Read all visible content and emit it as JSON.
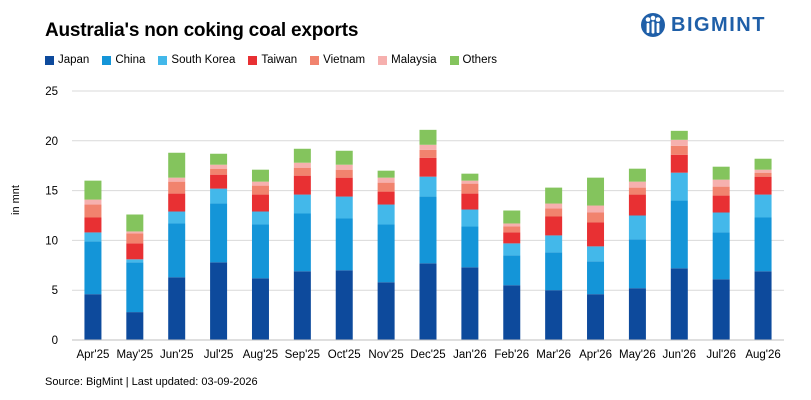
{
  "title": "Australia's non coking coal exports",
  "logo": {
    "text": "BIGMINT",
    "icon": "bigmint-logo-icon"
  },
  "source": "Source: BigMint | Last updated: 03-09-2026",
  "chart_data": {
    "type": "bar",
    "stacked": true,
    "title": "Australia's non coking coal exports",
    "ylabel": "in mnt",
    "xlabel": "",
    "ylim": [
      0,
      25
    ],
    "yticks": [
      0,
      5,
      10,
      15,
      20,
      25
    ],
    "grid": true,
    "legend_position": "top-left",
    "categories": [
      "Apr'25",
      "May'25",
      "Jun'25",
      "Jul'25",
      "Aug'25",
      "Sep'25",
      "Oct'25",
      "Nov'25",
      "Dec'25",
      "Jan'26",
      "Feb'26",
      "Mar'26",
      "Apr'26",
      "May'26",
      "Jun'26",
      "Jul'26",
      "Aug'26"
    ],
    "series": [
      {
        "name": "Japan",
        "color": "#0d4a9c",
        "values": [
          4.6,
          2.8,
          6.3,
          7.8,
          6.2,
          6.9,
          7.0,
          5.8,
          7.7,
          7.3,
          5.5,
          5.0,
          4.6,
          5.2,
          7.2,
          6.1,
          6.9
        ]
      },
      {
        "name": "China",
        "color": "#1495d8",
        "values": [
          5.3,
          5.0,
          5.4,
          5.9,
          5.4,
          5.8,
          5.2,
          5.8,
          6.7,
          4.1,
          3.0,
          3.8,
          3.3,
          4.9,
          6.8,
          4.7,
          5.4
        ]
      },
      {
        "name": "South Korea",
        "color": "#43b8ea",
        "values": [
          0.9,
          0.3,
          1.2,
          1.5,
          1.3,
          1.9,
          2.2,
          2.0,
          2.0,
          1.7,
          1.2,
          1.7,
          1.5,
          2.4,
          2.8,
          2.0,
          2.3
        ]
      },
      {
        "name": "Taiwan",
        "color": "#e83033",
        "values": [
          1.5,
          1.6,
          1.8,
          1.4,
          1.7,
          1.9,
          1.9,
          1.3,
          1.9,
          1.6,
          1.1,
          1.9,
          2.4,
          2.1,
          1.8,
          1.7,
          1.8
        ]
      },
      {
        "name": "Vietnam",
        "color": "#f1836e",
        "values": [
          1.3,
          1.0,
          1.2,
          0.6,
          0.9,
          0.8,
          0.8,
          0.9,
          0.8,
          1.0,
          0.6,
          0.8,
          1.0,
          0.7,
          0.9,
          0.9,
          0.4
        ]
      },
      {
        "name": "Malaysia",
        "color": "#f6b0ae",
        "values": [
          0.5,
          0.2,
          0.4,
          0.4,
          0.4,
          0.5,
          0.5,
          0.5,
          0.5,
          0.3,
          0.3,
          0.5,
          0.7,
          0.6,
          0.6,
          0.7,
          0.3
        ]
      },
      {
        "name": "Others",
        "color": "#84c45d",
        "values": [
          1.9,
          1.7,
          2.5,
          1.1,
          1.2,
          1.4,
          1.4,
          0.7,
          1.5,
          0.7,
          1.3,
          1.6,
          2.8,
          1.3,
          0.9,
          1.3,
          1.1
        ]
      }
    ]
  }
}
